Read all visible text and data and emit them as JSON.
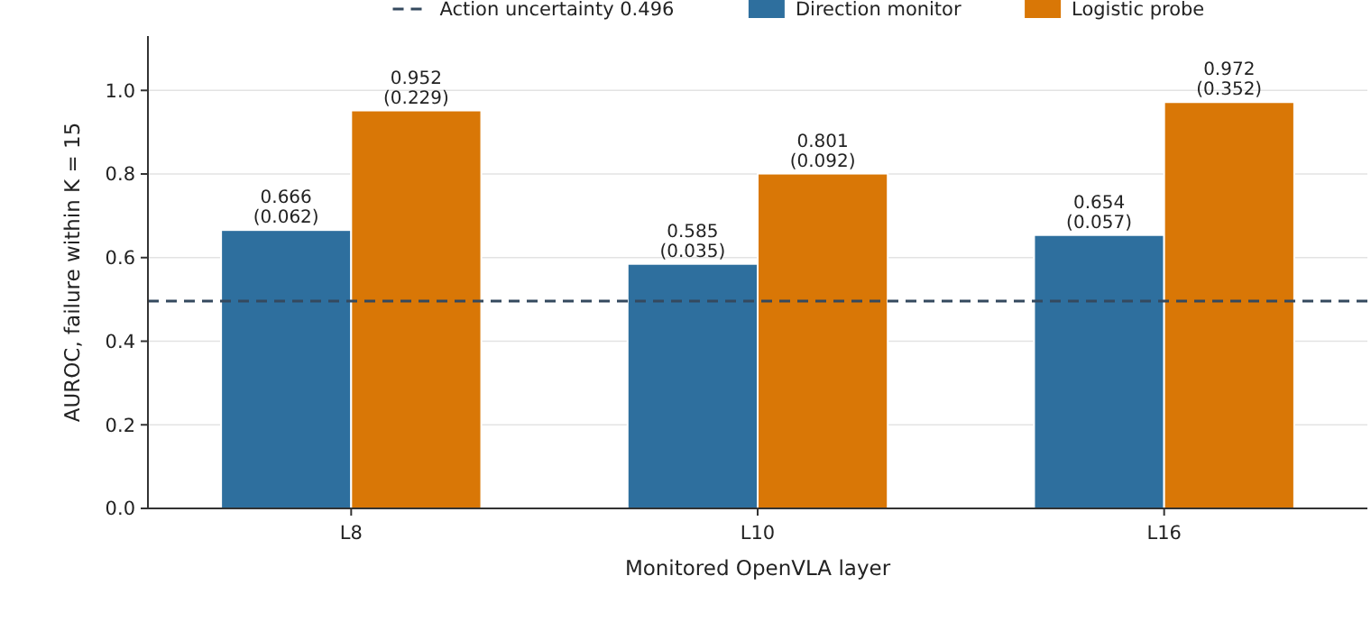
{
  "chart_data": {
    "type": "bar",
    "xlabel": "Monitored OpenVLA layer",
    "ylabel": "AUROC, failure within K = 15",
    "categories": [
      "L8",
      "L10",
      "L16"
    ],
    "series": [
      {
        "name": "Direction monitor",
        "color": "#2e6f9e",
        "values": [
          0.666,
          0.585,
          0.654
        ],
        "value_labels": [
          "0.666\n(0.062)",
          "0.585\n(0.035)",
          "0.654\n(0.057)"
        ]
      },
      {
        "name": "Logistic probe",
        "color": "#d97706",
        "values": [
          0.952,
          0.801,
          0.972
        ],
        "value_labels": [
          "0.952\n(0.229)",
          "0.801\n(0.092)",
          "0.972\n(0.352)"
        ]
      }
    ],
    "ylim": [
      0,
      1.13
    ],
    "yticks": [
      {
        "value": 0,
        "label": "0.0"
      },
      {
        "value": 0.2,
        "label": "0.2"
      },
      {
        "value": 0.4,
        "label": "0.4"
      },
      {
        "value": 0.6,
        "label": "0.6"
      },
      {
        "value": 0.8,
        "label": "0.8"
      },
      {
        "value": 1.0,
        "label": "1.0"
      }
    ],
    "ref_lines": [
      {
        "axis": "y",
        "value": 0.496,
        "label": "Action uncertainty 0.496",
        "color": "#34495e",
        "line_style": "dashed"
      }
    ],
    "grid": "y",
    "legend": "top"
  }
}
